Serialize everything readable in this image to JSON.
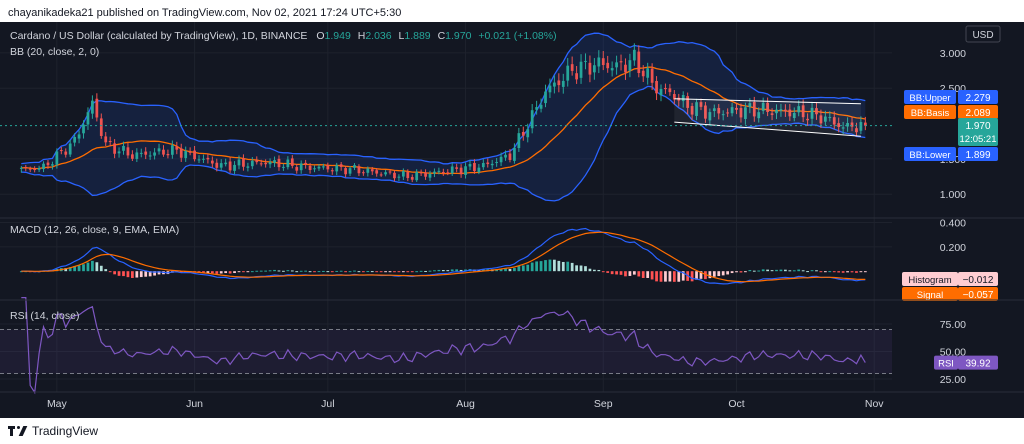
{
  "header": {
    "text": "chayanikadeka21 published on TradingView.com, Nov 02, 2021 17:24 UTC+5:30"
  },
  "footer": {
    "brand": "TradingView"
  },
  "colors": {
    "background": "#131722",
    "up": "#26a69a",
    "down": "#ef5350",
    "bb_band": "#2962ff",
    "bb_basis": "#ff6d00",
    "macd": "#2962ff",
    "signal": "#ff6d00",
    "rsi": "#7e57c2",
    "channel": "#ffffff"
  },
  "chart_data": [
    {
      "type": "candlestick",
      "title": "Cardano / US Dollar (calculated by TradingView), 1D, BINANCE",
      "ohlc": {
        "o_label": "O",
        "o": "1.949",
        "h_label": "H",
        "h": "2.036",
        "l_label": "L",
        "l": "1.889",
        "c_label": "C",
        "c": "1.970",
        "change": "+0.021 (+1.08%)"
      },
      "indicator_label": "BB (20, close, 2, 0)",
      "currency": "USD",
      "y_ticks": [
        "3.000",
        "2.500",
        "1.500",
        "1.000"
      ],
      "y_tick_values": [
        3.0,
        2.5,
        1.5,
        1.0
      ],
      "ylim": [
        0.72,
        3.38
      ],
      "x_ticks": [
        "May",
        "Jun",
        "Jul",
        "Aug",
        "Sep",
        "Oct",
        "Nov"
      ],
      "x_tick_values": [
        8,
        39,
        69,
        100,
        131,
        161,
        192
      ],
      "xlim": [
        -3,
        196
      ],
      "anchors_day": [
        0,
        5,
        12,
        16,
        19,
        25,
        35,
        45,
        55,
        65,
        75,
        87,
        95,
        104,
        110,
        115,
        118,
        124,
        130,
        134,
        138,
        143,
        147,
        150,
        155,
        165,
        175,
        180,
        185,
        190
      ],
      "anchors_close": [
        1.35,
        1.38,
        1.75,
        2.28,
        1.7,
        1.55,
        1.62,
        1.4,
        1.45,
        1.38,
        1.35,
        1.25,
        1.32,
        1.4,
        1.55,
        2.1,
        2.45,
        2.75,
        2.85,
        2.8,
        2.9,
        2.5,
        2.4,
        2.25,
        2.15,
        2.2,
        2.15,
        2.1,
        1.95,
        1.97
      ],
      "bb_labels": {
        "upper": "BB:Upper",
        "basis": "BB:Basis",
        "lower": "BB:Lower"
      },
      "bb_values": {
        "upper": "2.279",
        "basis": "2.089",
        "lower": "1.899"
      },
      "bb_value_nums": {
        "upper": 2.279,
        "basis": 2.089,
        "lower": 1.899
      },
      "last_price": "1.970",
      "last_price_num": 1.97,
      "countdown": "12:05:21",
      "channel": {
        "x_days": [
          147,
          189
        ],
        "upper": [
          2.35,
          2.28
        ],
        "lower": [
          2.02,
          1.82
        ]
      }
    },
    {
      "type": "macd",
      "label": "MACD (12, 26, close, 9, EMA, EMA)",
      "y_ticks": [
        "0.400",
        "0.200"
      ],
      "y_tick_values": [
        0.4,
        0.2
      ],
      "ylim": [
        -0.22,
        0.42
      ],
      "histogram_label": "Histogram",
      "histogram_value": "−0.012",
      "histogram_num": -0.012,
      "signal_label": "Signal",
      "signal_value": "−0.057",
      "signal_num": -0.057
    },
    {
      "type": "line",
      "label": "RSI (14, close)",
      "y_ticks": [
        "75.00",
        "50.00",
        "25.00"
      ],
      "y_tick_values": [
        75,
        50,
        25
      ],
      "ylim": [
        15,
        95
      ],
      "band": [
        30,
        70
      ],
      "series_label": "RSI",
      "value": "39.92",
      "value_num": 39.92
    }
  ]
}
